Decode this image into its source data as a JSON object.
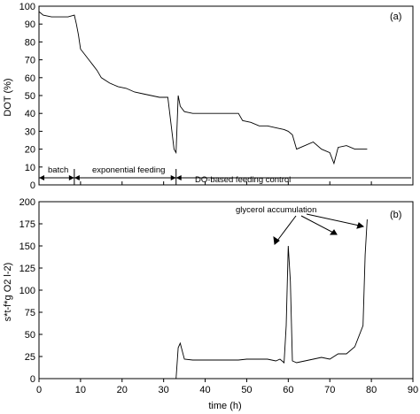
{
  "chart_data": [
    {
      "type": "line",
      "panel": "(a)",
      "ylabel": "DOT (%)",
      "xlabel": "",
      "xlim": [
        0,
        90
      ],
      "ylim": [
        0,
        100
      ],
      "x_ticks": [
        0,
        10,
        20,
        30,
        40,
        50,
        60,
        70,
        80,
        90
      ],
      "y_ticks": [
        0,
        10,
        20,
        30,
        40,
        50,
        60,
        70,
        80,
        90,
        100
      ],
      "grid": false,
      "series": [
        {
          "x": [
            0,
            1,
            3,
            5,
            7,
            8.5,
            9,
            9.5,
            10,
            11,
            12,
            13,
            14,
            15,
            17,
            19,
            21,
            23,
            25,
            27,
            29,
            31,
            32,
            32.5,
            33,
            33.5,
            34,
            35,
            37,
            39,
            41,
            43,
            45,
            47,
            48,
            49,
            51,
            53,
            55,
            57,
            59,
            60,
            61,
            62,
            64,
            66,
            68,
            70,
            71,
            72,
            74,
            76,
            78,
            79
          ],
          "y": [
            97,
            95,
            94,
            94,
            94,
            95,
            90,
            84,
            76,
            73,
            70,
            67,
            64,
            60,
            57,
            55,
            54,
            52,
            51,
            50,
            49,
            49,
            30,
            20,
            18,
            50,
            44,
            41,
            40,
            40,
            40,
            40,
            40,
            40,
            40,
            36,
            35,
            33,
            33,
            32,
            31,
            30,
            28,
            20,
            22,
            24,
            20,
            18,
            12,
            21,
            22,
            20,
            20,
            20
          ]
        }
      ],
      "phases": {
        "batch": [
          0,
          8.5
        ],
        "exponential": [
          8.5,
          33
        ],
        "do_based": [
          33,
          90
        ]
      },
      "annotations": [
        "batch",
        "exponential feeding",
        "DO-based feeding control"
      ]
    },
    {
      "type": "line",
      "panel": "(b)",
      "ylabel": "s*t-f*g O2 l-2)",
      "xlabel": "time (h)",
      "xlim": [
        0,
        90
      ],
      "ylim": [
        0,
        200
      ],
      "x_ticks": [
        0,
        10,
        20,
        30,
        40,
        50,
        60,
        70,
        80,
        90
      ],
      "y_ticks": [
        0,
        25,
        50,
        75,
        100,
        125,
        150,
        175,
        200
      ],
      "grid": false,
      "series": [
        {
          "x": [
            33,
            33.5,
            34,
            35,
            37,
            40,
            45,
            48,
            50,
            52,
            55,
            57,
            58,
            59,
            59.5,
            60,
            60.5,
            61,
            62,
            64,
            66,
            68,
            70,
            72,
            74,
            76,
            78,
            78.5,
            79
          ],
          "y": [
            0,
            35,
            40,
            22,
            21,
            21,
            21,
            21,
            22,
            22,
            22,
            20,
            22,
            18,
            60,
            150,
            110,
            20,
            18,
            20,
            22,
            24,
            22,
            28,
            28,
            36,
            60,
            140,
            180
          ]
        }
      ],
      "annotations": [
        "glycerol accumulation"
      ]
    }
  ],
  "panel_a": {
    "label": "(a)",
    "ylabel": "DOT (%)",
    "y_tick_labels": [
      "0",
      "10",
      "20",
      "30",
      "40",
      "50",
      "60",
      "70",
      "80",
      "90",
      "100"
    ],
    "phase_labels": {
      "batch": "batch",
      "exponential": "exponential feeding",
      "do_based": "DO-based feeding control"
    }
  },
  "panel_b": {
    "label": "(b)",
    "ylabel": "s*t-f*g O2 l-2)",
    "y_tick_labels": [
      "0",
      "25",
      "50",
      "75",
      "100",
      "125",
      "150",
      "175",
      "200"
    ],
    "x_tick_labels": [
      "0",
      "10",
      "20",
      "30",
      "40",
      "50",
      "60",
      "70",
      "80",
      "90"
    ],
    "xlabel": "time (h)",
    "annotation": "glycerol accumulation"
  }
}
